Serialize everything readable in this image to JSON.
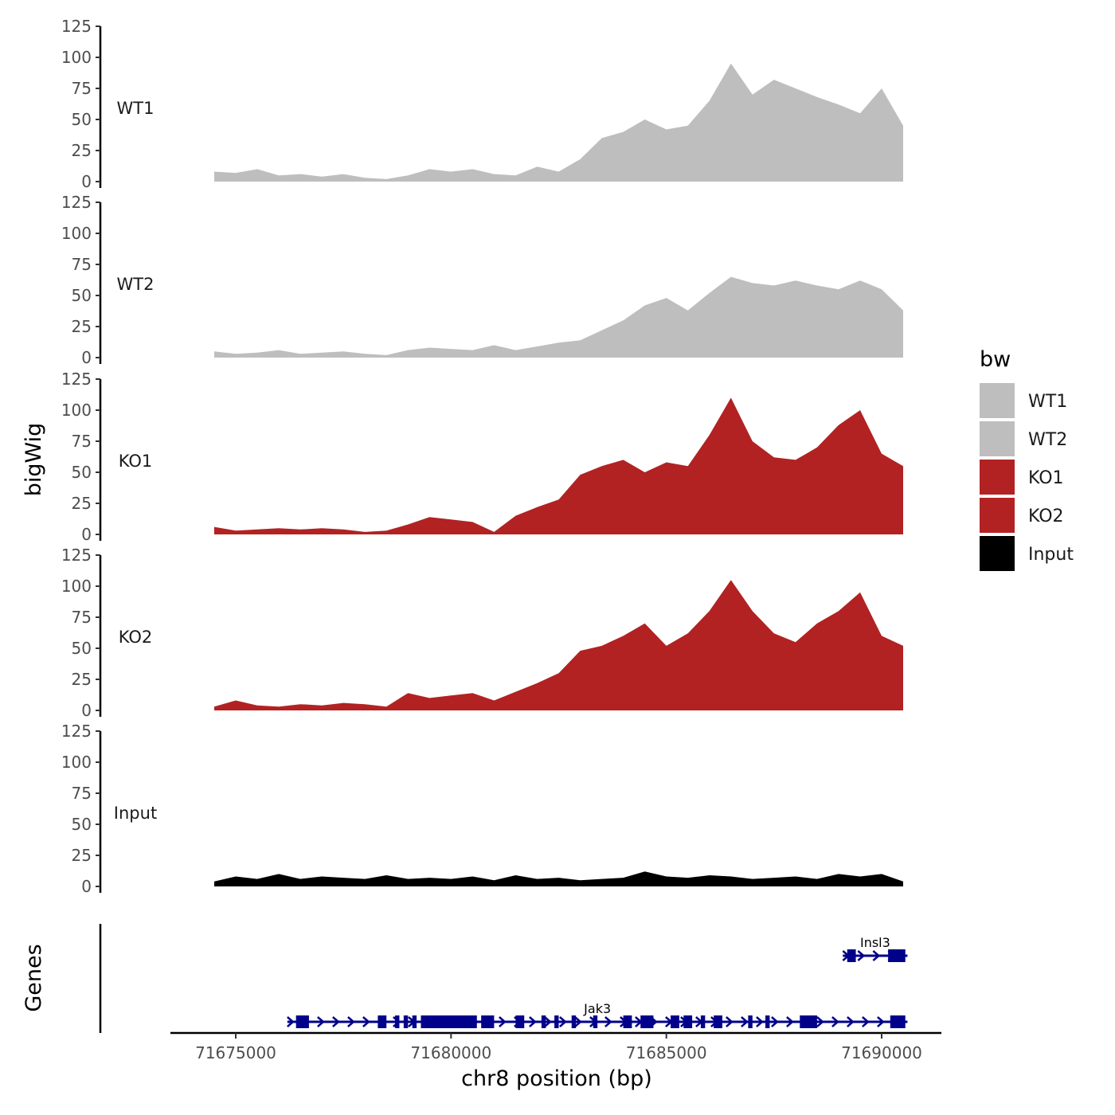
{
  "chart_data": {
    "type": "area",
    "x_range": [
      71674500,
      71690600
    ],
    "ylim": [
      0,
      125
    ],
    "y_ticks": [
      0,
      25,
      50,
      75,
      100,
      125
    ],
    "y_title": "bigWig",
    "x_title": "chr8 position (bp)",
    "x_ticks": [
      71675000,
      71680000,
      71685000,
      71690000
    ],
    "genes_title": "Genes",
    "legend": {
      "title": "bw",
      "position": "right",
      "entries": [
        {
          "name": "WT1",
          "color": "#bebebe"
        },
        {
          "name": "WT2",
          "color": "#bebebe"
        },
        {
          "name": "KO1",
          "color": "#b22222"
        },
        {
          "name": "KO2",
          "color": "#b22222"
        },
        {
          "name": "Input",
          "color": "#000000"
        }
      ]
    },
    "tracks": [
      {
        "name": "WT1",
        "color": "#bebebe",
        "x": [
          71674500,
          71675000,
          71675500,
          71676000,
          71676500,
          71677000,
          71677500,
          71678000,
          71678500,
          71679000,
          71679500,
          71680000,
          71680500,
          71681000,
          71681500,
          71682000,
          71682500,
          71683000,
          71683500,
          71684000,
          71684500,
          71685000,
          71685500,
          71686000,
          71686500,
          71687000,
          71687500,
          71688000,
          71688500,
          71689000,
          71689500,
          71690000,
          71690500
        ],
        "values": [
          8,
          7,
          10,
          5,
          6,
          4,
          6,
          3,
          2,
          5,
          10,
          8,
          10,
          6,
          5,
          12,
          8,
          18,
          35,
          40,
          50,
          42,
          45,
          65,
          95,
          70,
          82,
          75,
          68,
          62,
          55,
          75,
          45
        ]
      },
      {
        "name": "WT2",
        "color": "#bebebe",
        "x": [
          71674500,
          71675000,
          71675500,
          71676000,
          71676500,
          71677000,
          71677500,
          71678000,
          71678500,
          71679000,
          71679500,
          71680000,
          71680500,
          71681000,
          71681500,
          71682000,
          71682500,
          71683000,
          71683500,
          71684000,
          71684500,
          71685000,
          71685500,
          71686000,
          71686500,
          71687000,
          71687500,
          71688000,
          71688500,
          71689000,
          71689500,
          71690000,
          71690500
        ],
        "values": [
          5,
          3,
          4,
          6,
          3,
          4,
          5,
          3,
          2,
          6,
          8,
          7,
          6,
          10,
          6,
          9,
          12,
          14,
          22,
          30,
          42,
          48,
          38,
          52,
          65,
          60,
          58,
          62,
          58,
          55,
          62,
          55,
          38
        ]
      },
      {
        "name": "KO1",
        "color": "#b22222",
        "x": [
          71674500,
          71675000,
          71675500,
          71676000,
          71676500,
          71677000,
          71677500,
          71678000,
          71678500,
          71679000,
          71679500,
          71680000,
          71680500,
          71681000,
          71681500,
          71682000,
          71682500,
          71683000,
          71683500,
          71684000,
          71684500,
          71685000,
          71685500,
          71686000,
          71686500,
          71687000,
          71687500,
          71688000,
          71688500,
          71689000,
          71689500,
          71690000,
          71690500
        ],
        "values": [
          6,
          3,
          4,
          5,
          4,
          5,
          4,
          2,
          3,
          8,
          14,
          12,
          10,
          2,
          15,
          22,
          28,
          48,
          55,
          60,
          50,
          58,
          55,
          80,
          110,
          75,
          62,
          60,
          70,
          88,
          100,
          65,
          55
        ]
      },
      {
        "name": "KO2",
        "color": "#b22222",
        "x": [
          71674500,
          71675000,
          71675500,
          71676000,
          71676500,
          71677000,
          71677500,
          71678000,
          71678500,
          71679000,
          71679500,
          71680000,
          71680500,
          71681000,
          71681500,
          71682000,
          71682500,
          71683000,
          71683500,
          71684000,
          71684500,
          71685000,
          71685500,
          71686000,
          71686500,
          71687000,
          71687500,
          71688000,
          71688500,
          71689000,
          71689500,
          71690000,
          71690500
        ],
        "values": [
          3,
          8,
          4,
          3,
          5,
          4,
          6,
          5,
          3,
          14,
          10,
          12,
          14,
          8,
          15,
          22,
          30,
          48,
          52,
          60,
          70,
          52,
          62,
          80,
          105,
          80,
          62,
          55,
          70,
          80,
          95,
          60,
          52
        ]
      },
      {
        "name": "Input",
        "color": "#000000",
        "x": [
          71674500,
          71675000,
          71675500,
          71676000,
          71676500,
          71677000,
          71677500,
          71678000,
          71678500,
          71679000,
          71679500,
          71680000,
          71680500,
          71681000,
          71681500,
          71682000,
          71682500,
          71683000,
          71683500,
          71684000,
          71684500,
          71685000,
          71685500,
          71686000,
          71686500,
          71687000,
          71687500,
          71688000,
          71688500,
          71689000,
          71689500,
          71690000,
          71690500
        ],
        "values": [
          4,
          8,
          6,
          10,
          6,
          8,
          7,
          6,
          9,
          6,
          7,
          6,
          8,
          5,
          9,
          6,
          7,
          5,
          6,
          7,
          12,
          8,
          7,
          9,
          8,
          6,
          7,
          8,
          6,
          10,
          8,
          10,
          4
        ]
      }
    ],
    "genes": [
      {
        "name": "Insl3",
        "row": 0,
        "start": 71689100,
        "end": 71690600,
        "exons": [
          [
            71689200,
            71689400
          ],
          [
            71690150,
            71690550
          ]
        ]
      },
      {
        "name": "Jak3",
        "row": 1,
        "start": 71676200,
        "end": 71690600,
        "exons": [
          [
            71676400,
            71676700
          ],
          [
            71678300,
            71678500
          ],
          [
            71678700,
            71678800
          ],
          [
            71678900,
            71679000
          ],
          [
            71679100,
            71679200
          ],
          [
            71679300,
            71680600
          ],
          [
            71680700,
            71681000
          ],
          [
            71681500,
            71681700
          ],
          [
            71682100,
            71682200
          ],
          [
            71682400,
            71682500
          ],
          [
            71682800,
            71682900
          ],
          [
            71683300,
            71683400
          ],
          [
            71684000,
            71684200
          ],
          [
            71684400,
            71684700
          ],
          [
            71685100,
            71685300
          ],
          [
            71685400,
            71685600
          ],
          [
            71685800,
            71685900
          ],
          [
            71686100,
            71686300
          ],
          [
            71686900,
            71687000
          ],
          [
            71687300,
            71687400
          ],
          [
            71688100,
            71688500
          ],
          [
            71690200,
            71690550
          ]
        ]
      }
    ]
  }
}
